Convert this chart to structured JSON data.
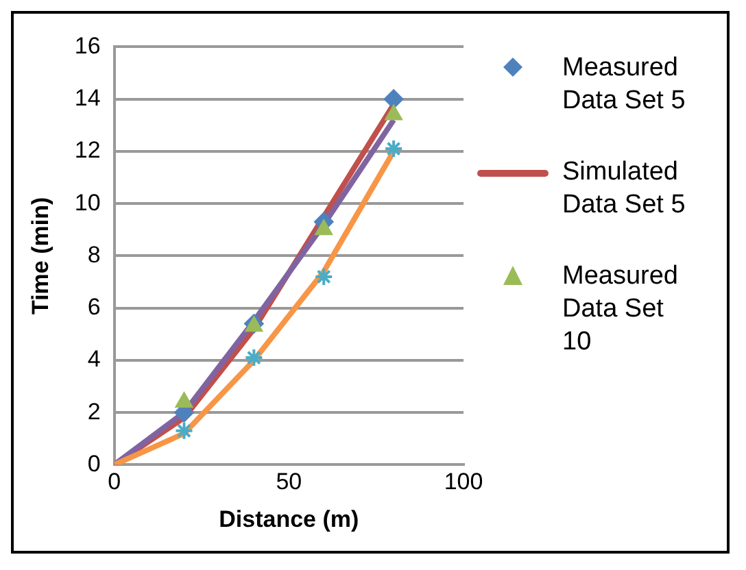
{
  "chart_data": {
    "type": "scatter",
    "xlabel": "Distance (m)",
    "ylabel": "Time (min)",
    "xlim": [
      0,
      100
    ],
    "xticks": [
      0,
      50,
      100
    ],
    "ylim": [
      0,
      16
    ],
    "yticks": [
      0,
      2,
      4,
      6,
      8,
      10,
      12,
      14,
      16
    ],
    "grid": "y",
    "legend": "right",
    "series": [
      {
        "name": "Measured Data Set 5",
        "marker": "diamond",
        "color": "#4f81bd",
        "x": [
          20,
          40,
          60,
          80
        ],
        "values": [
          2.0,
          5.4,
          9.3,
          14.0
        ]
      },
      {
        "name": "Simulated Data Set 5",
        "type": "line",
        "marker": "none",
        "color": "#c0504d",
        "x": [
          0,
          20,
          40,
          60,
          80
        ],
        "values": [
          0,
          1.8,
          5.2,
          9.5,
          13.8
        ]
      },
      {
        "name": "Measured Data Set 10",
        "marker": "triangle",
        "color": "#9bbb59",
        "x": [
          20,
          40,
          60,
          80
        ],
        "values": [
          2.4,
          5.3,
          9.0,
          13.4
        ]
      },
      {
        "type": "line",
        "marker": "none",
        "color": "#8064a2",
        "x": [
          0,
          20,
          40,
          60,
          80
        ],
        "values": [
          0,
          2.0,
          5.5,
          9.2,
          13.2
        ]
      },
      {
        "marker": "cross",
        "color": "#4bacc6",
        "x": [
          20,
          40,
          60,
          80
        ],
        "values": [
          1.3,
          4.1,
          7.2,
          12.1
        ]
      },
      {
        "type": "line",
        "marker": "none",
        "color": "#f79646",
        "x": [
          0,
          20,
          40,
          60,
          80
        ],
        "values": [
          0,
          1.2,
          4.0,
          7.4,
          12.0
        ]
      }
    ]
  }
}
